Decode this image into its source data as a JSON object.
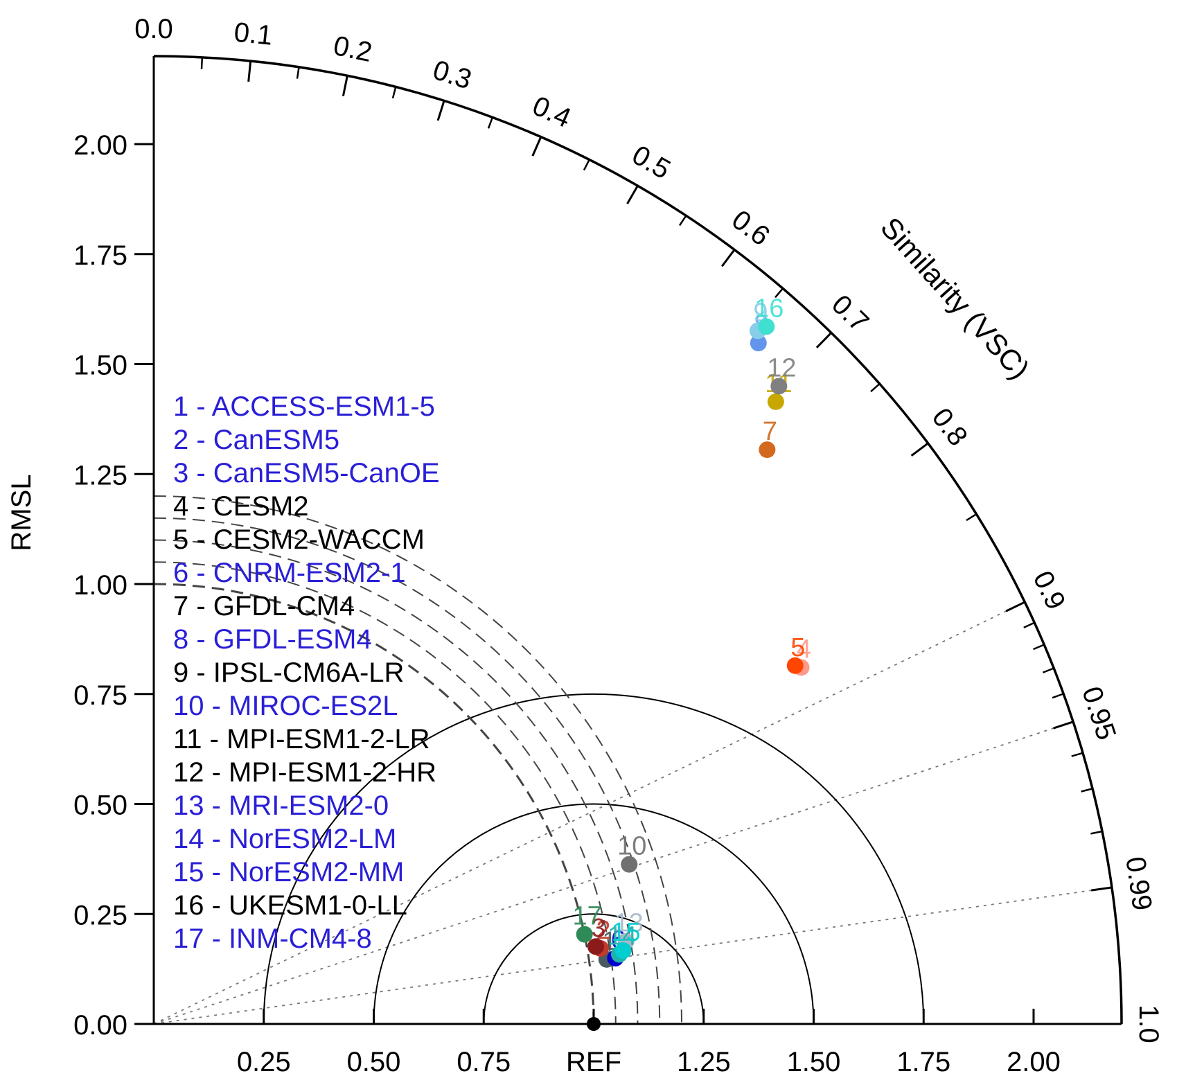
{
  "chart_data": {
    "type": "scatter",
    "subtype": "taylor-diagram",
    "ylabel": "RMSL",
    "arc_label": "Similarity (VSC)",
    "ref_label": "REF",
    "ref_point": {
      "std": 1.0,
      "corr": 1.0
    },
    "radial_range": [
      0,
      2.2
    ],
    "y_ticks": [
      "0.00",
      "0.25",
      "0.50",
      "0.75",
      "1.00",
      "1.25",
      "1.50",
      "1.75",
      "2.00"
    ],
    "x_ticks": [
      "0.25",
      "0.50",
      "0.75",
      "REF",
      "1.25",
      "1.50",
      "1.75",
      "2.00"
    ],
    "corr_ticks": [
      "0.0",
      "0.1",
      "0.2",
      "0.3",
      "0.4",
      "0.5",
      "0.6",
      "0.7",
      "0.8",
      "0.9",
      "0.95",
      "0.99",
      "1.0"
    ],
    "grid_std_arcs": [
      0.25,
      0.5,
      0.75
    ],
    "skill_contours": [
      1.2,
      1.15,
      1.1,
      1.05,
      1.0
    ],
    "legend_position": "left",
    "models": [
      {
        "id": "1",
        "name": "ACCESS-ESM1-5",
        "legend_color": "#2a1fd6",
        "marker_color": "#4a5a60",
        "std": 1.04,
        "corr": 0.99
      },
      {
        "id": "2",
        "name": "CanESM5",
        "legend_color": "#2a1fd6",
        "marker_color": "#c0392b",
        "std": 1.03,
        "corr": 0.986
      },
      {
        "id": "3",
        "name": "CanESM5-CanOE",
        "legend_color": "#2a1fd6",
        "marker_color": "#8b1a1a",
        "std": 1.02,
        "corr": 0.985
      },
      {
        "id": "4",
        "name": "CESM2",
        "legend_color": "#000000",
        "marker_color": "#ff9a8a",
        "std": 1.68,
        "corr": 0.876
      },
      {
        "id": "5",
        "name": "CESM2-WACCM",
        "legend_color": "#000000",
        "marker_color": "#ff4500",
        "std": 1.67,
        "corr": 0.873
      },
      {
        "id": "6",
        "name": "CNRM-ESM2-1",
        "legend_color": "#2a1fd6",
        "marker_color": "#0000cd",
        "std": 1.06,
        "corr": 0.99
      },
      {
        "id": "7",
        "name": "GFDL-CM4",
        "legend_color": "#000000",
        "marker_color": "#d2691e",
        "std": 1.91,
        "corr": 0.73
      },
      {
        "id": "8",
        "name": "GFDL-ESM4",
        "legend_color": "#2a1fd6",
        "marker_color": "#6495ed",
        "std": 2.07,
        "corr": 0.664
      },
      {
        "id": "9",
        "name": "IPSL-CM6A-LR",
        "legend_color": "#000000",
        "marker_color": "#87ceeb",
        "std": 2.09,
        "corr": 0.657
      },
      {
        "id": "10",
        "name": "MIROC-ES2L",
        "legend_color": "#2a1fd6",
        "marker_color": "#707070",
        "std": 1.14,
        "corr": 0.948
      },
      {
        "id": "11",
        "name": "MPI-ESM1-2-LR",
        "legend_color": "#000000",
        "marker_color": "#c8a800",
        "std": 2.0,
        "corr": 0.707
      },
      {
        "id": "12",
        "name": "MPI-ESM1-2-HR",
        "legend_color": "#000000",
        "marker_color": "#808080",
        "std": 2.03,
        "corr": 0.7
      },
      {
        "id": "13",
        "name": "MRI-ESM2-0",
        "legend_color": "#2a1fd6",
        "marker_color": "#a9b8c8",
        "std": 1.09,
        "corr": 0.985
      },
      {
        "id": "14",
        "name": "NorESM2-LM",
        "legend_color": "#2a1fd6",
        "marker_color": "#20b2aa",
        "std": 1.07,
        "corr": 0.989
      },
      {
        "id": "15",
        "name": "NorESM2-MM",
        "legend_color": "#2a1fd6",
        "marker_color": "#00ced1",
        "std": 1.08,
        "corr": 0.988
      },
      {
        "id": "16",
        "name": "UKESM1-0-LL",
        "legend_color": "#000000",
        "marker_color": "#40e0d0",
        "std": 2.11,
        "corr": 0.66
      },
      {
        "id": "17",
        "name": "INM-CM4-8",
        "legend_color": "#2a1fd6",
        "marker_color": "#2e8b57",
        "std": 1.0,
        "corr": 0.979
      }
    ],
    "colors": {
      "axis": "#000000",
      "ref_marker": "#000000",
      "dotted_rays": "#777777",
      "skill_dash": "#444444"
    }
  }
}
